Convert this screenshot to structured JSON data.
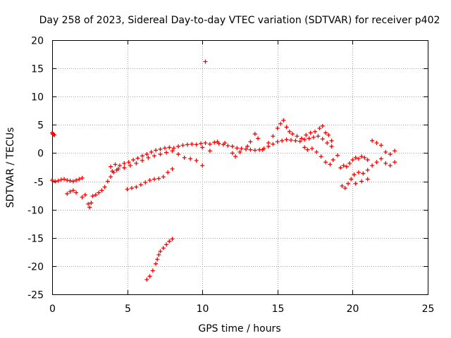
{
  "chart_data": {
    "type": "scatter",
    "title": "Day 258 of 2023, Sidereal Day-to-day VTEC variation (SDTVAR) for receiver p402",
    "xlabel": "GPS time / hours",
    "ylabel": "SDTVAR / TECUs",
    "xlim": [
      0,
      25
    ],
    "ylim": [
      -25,
      20
    ],
    "x_ticks": [
      0,
      5,
      10,
      15,
      20,
      25
    ],
    "y_ticks": [
      -25,
      -20,
      -15,
      -10,
      -5,
      0,
      5,
      10,
      15,
      20
    ],
    "x_tick_labels": [
      "0",
      "5",
      "10",
      "15",
      "20",
      "25"
    ],
    "y_tick_labels": [
      "-25",
      "-20",
      "-15",
      "-10",
      "-5",
      "0",
      "5",
      "10",
      "15",
      "20"
    ],
    "grid": true,
    "marker": "+",
    "marker_color": "#ff0000",
    "series": [
      {
        "name": "start-cluster",
        "points": [
          [
            0.0,
            3.6
          ],
          [
            0.05,
            3.4
          ],
          [
            0.1,
            3.3
          ],
          [
            0.15,
            3.2
          ]
        ]
      },
      {
        "name": "early-flat",
        "points": [
          [
            0.0,
            -4.8
          ],
          [
            0.2,
            -5.0
          ],
          [
            0.4,
            -4.9
          ],
          [
            0.6,
            -4.7
          ],
          [
            0.8,
            -4.6
          ],
          [
            1.0,
            -4.8
          ],
          [
            1.2,
            -4.9
          ],
          [
            1.4,
            -5.0
          ],
          [
            1.6,
            -4.8
          ],
          [
            1.8,
            -4.6
          ],
          [
            2.0,
            -4.4
          ]
        ]
      },
      {
        "name": "early-dip",
        "points": [
          [
            1.0,
            -7.2
          ],
          [
            1.2,
            -6.8
          ],
          [
            1.4,
            -6.6
          ],
          [
            1.6,
            -7.0
          ],
          [
            2.0,
            -7.8
          ],
          [
            2.2,
            -7.4
          ],
          [
            2.4,
            -9.0
          ],
          [
            2.5,
            -9.6
          ],
          [
            2.6,
            -8.8
          ],
          [
            2.7,
            -7.6
          ],
          [
            2.9,
            -7.4
          ],
          [
            3.1,
            -7.0
          ],
          [
            3.3,
            -6.6
          ],
          [
            3.5,
            -6.0
          ],
          [
            3.7,
            -5.0
          ],
          [
            3.9,
            -4.2
          ],
          [
            4.1,
            -3.4
          ],
          [
            4.3,
            -3.0
          ]
        ]
      },
      {
        "name": "main-rise",
        "points": [
          [
            3.9,
            -2.4
          ],
          [
            4.2,
            -2.0
          ],
          [
            4.5,
            -2.2
          ],
          [
            4.8,
            -1.8
          ],
          [
            5.1,
            -1.6
          ],
          [
            5.4,
            -1.2
          ],
          [
            5.7,
            -0.9
          ],
          [
            6.0,
            -0.5
          ],
          [
            6.3,
            -0.2
          ],
          [
            6.6,
            0.2
          ],
          [
            6.9,
            0.5
          ],
          [
            7.2,
            0.7
          ],
          [
            7.5,
            0.9
          ],
          [
            7.8,
            1.0
          ],
          [
            8.1,
            0.9
          ],
          [
            8.4,
            1.2
          ],
          [
            8.7,
            1.4
          ],
          [
            9.0,
            1.5
          ],
          [
            9.3,
            1.6
          ],
          [
            9.6,
            1.5
          ],
          [
            9.9,
            1.7
          ],
          [
            10.2,
            1.8
          ],
          [
            10.5,
            1.6
          ],
          [
            10.8,
            1.9
          ],
          [
            11.1,
            1.7
          ],
          [
            11.4,
            1.5
          ],
          [
            11.7,
            1.3
          ],
          [
            12.0,
            1.2
          ],
          [
            12.3,
            0.9
          ],
          [
            12.6,
            0.8
          ],
          [
            12.9,
            0.7
          ],
          [
            13.2,
            0.6
          ],
          [
            13.5,
            0.5
          ],
          [
            13.8,
            0.6
          ],
          [
            14.1,
            0.8
          ],
          [
            14.4,
            1.2
          ],
          [
            14.7,
            1.6
          ],
          [
            15.0,
            2.0
          ],
          [
            15.3,
            2.2
          ],
          [
            15.6,
            2.4
          ],
          [
            15.9,
            2.3
          ],
          [
            16.2,
            2.2
          ],
          [
            16.5,
            2.1
          ],
          [
            16.8,
            2.4
          ],
          [
            17.1,
            2.6
          ],
          [
            17.4,
            2.8
          ],
          [
            17.7,
            3.0
          ],
          [
            18.0,
            2.5
          ],
          [
            18.3,
            1.8
          ],
          [
            18.6,
            1.2
          ]
        ]
      },
      {
        "name": "secondary-band",
        "points": [
          [
            4.0,
            -3.2
          ],
          [
            4.4,
            -2.8
          ],
          [
            4.8,
            -2.6
          ],
          [
            5.2,
            -2.2
          ],
          [
            5.6,
            -1.8
          ],
          [
            6.0,
            -1.3
          ],
          [
            6.4,
            -0.8
          ],
          [
            6.8,
            -0.5
          ],
          [
            7.2,
            -0.2
          ],
          [
            7.6,
            0.1
          ],
          [
            8.0,
            0.4
          ],
          [
            8.4,
            -0.2
          ],
          [
            8.8,
            -0.8
          ],
          [
            9.2,
            -1.0
          ],
          [
            9.6,
            -1.3
          ],
          [
            10.0,
            -2.2
          ]
        ]
      },
      {
        "name": "lower-branch",
        "points": [
          [
            5.0,
            -6.4
          ],
          [
            5.3,
            -6.2
          ],
          [
            5.6,
            -6.0
          ],
          [
            5.9,
            -5.6
          ],
          [
            6.2,
            -5.2
          ],
          [
            6.5,
            -4.8
          ],
          [
            6.8,
            -4.6
          ],
          [
            7.1,
            -4.5
          ],
          [
            7.4,
            -4.2
          ],
          [
            7.7,
            -3.4
          ],
          [
            8.0,
            -2.8
          ]
        ]
      },
      {
        "name": "deep-branch",
        "points": [
          [
            6.3,
            -22.4
          ],
          [
            6.5,
            -21.8
          ],
          [
            6.7,
            -20.8
          ],
          [
            6.9,
            -19.6
          ],
          [
            7.0,
            -18.8
          ],
          [
            7.1,
            -18.0
          ],
          [
            7.2,
            -17.4
          ],
          [
            7.4,
            -16.8
          ],
          [
            7.6,
            -16.2
          ],
          [
            7.8,
            -15.6
          ],
          [
            8.0,
            -15.2
          ]
        ]
      },
      {
        "name": "outlier",
        "points": [
          [
            10.2,
            16.2
          ]
        ]
      },
      {
        "name": "mid-scatter",
        "points": [
          [
            10.0,
            1.0
          ],
          [
            10.5,
            0.4
          ],
          [
            11.0,
            2.0
          ],
          [
            11.5,
            1.8
          ],
          [
            12.0,
            0.0
          ],
          [
            12.2,
            -0.6
          ],
          [
            12.5,
            0.2
          ],
          [
            13.0,
            1.2
          ],
          [
            13.2,
            2.0
          ],
          [
            13.5,
            3.4
          ],
          [
            13.7,
            2.6
          ],
          [
            14.0,
            0.6
          ],
          [
            14.4,
            1.8
          ],
          [
            14.7,
            3.0
          ],
          [
            15.0,
            4.4
          ],
          [
            15.2,
            5.2
          ],
          [
            15.4,
            5.8
          ],
          [
            15.6,
            4.6
          ],
          [
            15.8,
            3.8
          ],
          [
            16.0,
            3.4
          ],
          [
            16.3,
            3.0
          ],
          [
            16.6,
            2.6
          ],
          [
            16.9,
            3.2
          ],
          [
            17.2,
            3.6
          ],
          [
            17.5,
            3.8
          ],
          [
            17.8,
            4.4
          ],
          [
            18.0,
            4.8
          ],
          [
            18.2,
            3.6
          ],
          [
            18.4,
            3.2
          ],
          [
            18.6,
            2.2
          ],
          [
            16.8,
            1.0
          ],
          [
            17.0,
            0.6
          ],
          [
            17.3,
            0.8
          ],
          [
            17.6,
            0.2
          ],
          [
            17.9,
            -0.6
          ],
          [
            18.2,
            -1.6
          ],
          [
            18.5,
            -2.0
          ],
          [
            18.7,
            -1.2
          ],
          [
            19.0,
            -0.4
          ]
        ]
      },
      {
        "name": "late-cluster",
        "points": [
          [
            19.2,
            -2.6
          ],
          [
            19.4,
            -2.2
          ],
          [
            19.6,
            -2.4
          ],
          [
            19.8,
            -1.8
          ],
          [
            20.0,
            -1.2
          ],
          [
            20.2,
            -0.8
          ],
          [
            20.4,
            -1.0
          ],
          [
            20.6,
            -0.6
          ],
          [
            20.8,
            -0.8
          ],
          [
            21.0,
            -1.2
          ],
          [
            19.3,
            -5.8
          ],
          [
            19.5,
            -6.2
          ],
          [
            19.7,
            -5.4
          ],
          [
            19.9,
            -4.6
          ],
          [
            20.1,
            -3.8
          ],
          [
            20.4,
            -3.4
          ],
          [
            20.7,
            -3.6
          ],
          [
            21.0,
            -3.0
          ],
          [
            20.2,
            -5.4
          ],
          [
            20.6,
            -5.0
          ],
          [
            21.0,
            -4.6
          ],
          [
            21.3,
            -2.2
          ],
          [
            21.6,
            -1.6
          ],
          [
            21.9,
            -1.0
          ],
          [
            22.2,
            -1.8
          ],
          [
            22.5,
            -2.2
          ],
          [
            22.8,
            -1.6
          ],
          [
            21.3,
            2.2
          ],
          [
            21.6,
            1.8
          ],
          [
            21.9,
            1.4
          ],
          [
            22.2,
            0.2
          ],
          [
            22.5,
            -0.2
          ],
          [
            22.8,
            0.4
          ]
        ]
      }
    ]
  }
}
